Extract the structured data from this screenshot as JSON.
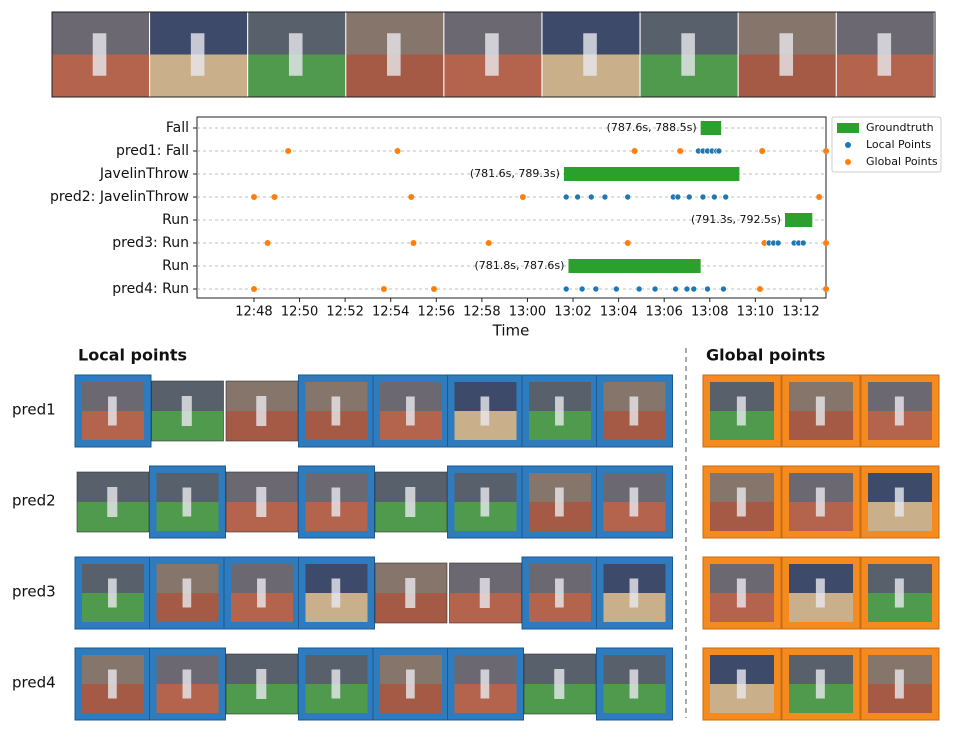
{
  "chart_data": {
    "type": "timeline",
    "x_label": "Time",
    "xlim": [
      765.5,
      793.1
    ],
    "xticks": [
      {
        "value": 768,
        "label": "12:48"
      },
      {
        "value": 770,
        "label": "12:50"
      },
      {
        "value": 772,
        "label": "12:52"
      },
      {
        "value": 774,
        "label": "12:54"
      },
      {
        "value": 776,
        "label": "12:56"
      },
      {
        "value": 778,
        "label": "12:58"
      },
      {
        "value": 780,
        "label": "13:00"
      },
      {
        "value": 782,
        "label": "13:02"
      },
      {
        "value": 784,
        "label": "13:04"
      },
      {
        "value": 786,
        "label": "13:06"
      },
      {
        "value": 788,
        "label": "13:08"
      },
      {
        "value": 790,
        "label": "13:10"
      },
      {
        "value": 792,
        "label": "13:12"
      }
    ],
    "grid": true,
    "legend": "upper right outside",
    "series": [
      {
        "name": "Groundtruth",
        "color": "#2ca02c"
      },
      {
        "name": "Local Points",
        "color": "#1f77b4"
      },
      {
        "name": "Global Points",
        "color": "#ff7f0e"
      }
    ],
    "rows": [
      {
        "label": "Fall",
        "interval": [
          787.6,
          788.5
        ],
        "interval_label": "(787.6s, 788.5s)"
      },
      {
        "label": "pred1: Fall",
        "local": [
          787.5,
          787.7,
          787.9,
          788.1,
          788.3,
          788.4
        ],
        "global": [
          769.5,
          774.3,
          784.7,
          786.7,
          790.3,
          793.1
        ]
      },
      {
        "label": "JavelinThrow",
        "interval": [
          781.6,
          789.3
        ],
        "interval_label": "(781.6s, 789.3s)"
      },
      {
        "label": "pred2: JavelinThrow",
        "local": [
          781.7,
          782.2,
          782.8,
          783.4,
          784.4,
          786.4,
          786.6,
          787.1,
          787.7,
          788.2,
          788.7
        ],
        "global": [
          768.0,
          768.9,
          774.9,
          779.8,
          792.8
        ]
      },
      {
        "label": "Run",
        "interval": [
          791.3,
          792.5
        ],
        "interval_label": "(791.3s, 792.5s)"
      },
      {
        "label": "pred3: Run",
        "local": [
          790.6,
          790.8,
          791.0,
          791.7,
          791.9,
          792.1
        ],
        "global": [
          768.6,
          775.0,
          778.3,
          784.4,
          790.4,
          793.1
        ]
      },
      {
        "label": "Run",
        "interval": [
          781.8,
          787.6
        ],
        "interval_label": "(781.8s, 787.6s)"
      },
      {
        "label": "pred4: Run",
        "local": [
          781.7,
          782.4,
          783.0,
          783.9,
          784.9,
          785.6,
          786.5,
          787.0,
          787.3,
          787.9,
          788.6
        ],
        "global": [
          768.0,
          773.7,
          775.9,
          790.2,
          793.1
        ]
      }
    ]
  },
  "gallery": {
    "local_title": "Local points",
    "global_title": "Global points",
    "rows": [
      "pred1",
      "pred2",
      "pred3",
      "pred4"
    ]
  }
}
